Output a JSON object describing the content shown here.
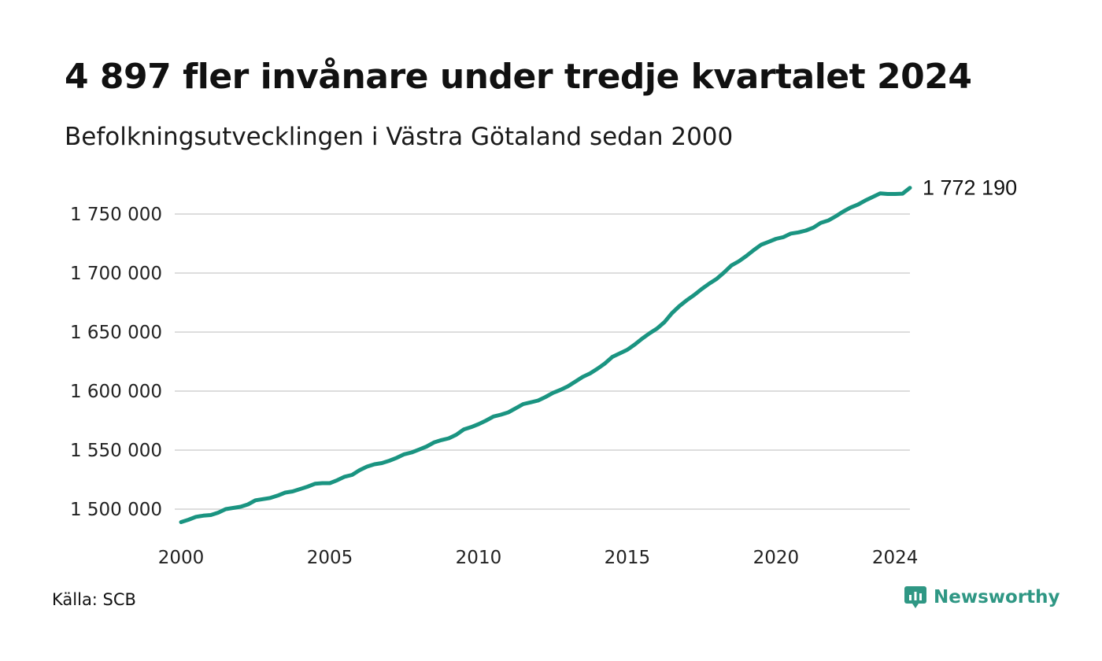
{
  "header": {
    "title": "4 897 fler invånare under tredje kvartalet 2024",
    "subtitle": "Befolkningsutvecklingen i Västra Götaland sedan 2000"
  },
  "footer": {
    "source": "Källa: SCB",
    "brand": "Newsworthy"
  },
  "colors": {
    "line": "#1a9481",
    "grid": "#dddddd",
    "brand": "#2f9784"
  },
  "chart_data": {
    "type": "line",
    "title": "4 897 fler invånare under tredje kvartalet 2024",
    "subtitle": "Befolkningsutvecklingen i Västra Götaland sedan 2000",
    "xlabel": "",
    "ylabel": "",
    "x_ticks": [
      2000,
      2005,
      2010,
      2015,
      2020,
      2024
    ],
    "y_ticks": [
      "1 500 000",
      "1 550 000",
      "1 600 000",
      "1 650 000",
      "1 700 000",
      "1 750 000"
    ],
    "y_tick_values": [
      1500000,
      1550000,
      1600000,
      1650000,
      1700000,
      1750000
    ],
    "xlim": [
      2000,
      2025
    ],
    "ylim": [
      1487000,
      1777000
    ],
    "grid": true,
    "end_label": "1 772 190",
    "series": [
      {
        "x": [
          2000.0,
          2000.25,
          2000.5,
          2000.75,
          2001.0,
          2001.25,
          2001.5,
          2001.75,
          2002.0,
          2002.25,
          2002.5,
          2002.75,
          2003.0,
          2003.25,
          2003.5,
          2003.75,
          2004.0,
          2004.25,
          2004.5,
          2004.75,
          2005.0,
          2005.25,
          2005.5,
          2005.75,
          2006.0,
          2006.25,
          2006.5,
          2006.75,
          2007.0,
          2007.25,
          2007.5,
          2007.75,
          2008.0,
          2008.25,
          2008.5,
          2008.75,
          2009.0,
          2009.25,
          2009.5,
          2009.75,
          2010.0,
          2010.25,
          2010.5,
          2010.75,
          2011.0,
          2011.25,
          2011.5,
          2011.75,
          2012.0,
          2012.25,
          2012.5,
          2012.75,
          2013.0,
          2013.25,
          2013.5,
          2013.75,
          2014.0,
          2014.25,
          2014.5,
          2014.75,
          2015.0,
          2015.25,
          2015.5,
          2015.75,
          2016.0,
          2016.25,
          2016.5,
          2016.75,
          2017.0,
          2017.25,
          2017.5,
          2017.75,
          2018.0,
          2018.25,
          2018.5,
          2018.75,
          2019.0,
          2019.25,
          2019.5,
          2019.75,
          2020.0,
          2020.25,
          2020.5,
          2020.75,
          2021.0,
          2021.25,
          2021.5,
          2021.75,
          2022.0,
          2022.25,
          2022.5,
          2022.75,
          2023.0,
          2023.25,
          2023.5,
          2023.75,
          2024.0,
          2024.25,
          2024.5
        ],
        "values": [
          1489000,
          1491000,
          1493500,
          1494500,
          1495000,
          1497000,
          1500000,
          1501000,
          1502000,
          1504000,
          1507500,
          1508500,
          1509500,
          1511500,
          1514000,
          1515000,
          1517000,
          1519000,
          1521500,
          1522000,
          1522000,
          1524500,
          1527500,
          1529000,
          1533000,
          1536000,
          1538000,
          1539000,
          1541000,
          1543500,
          1546500,
          1548000,
          1550500,
          1553000,
          1556500,
          1558500,
          1560000,
          1563000,
          1567500,
          1569500,
          1572000,
          1575000,
          1578500,
          1580000,
          1582000,
          1585500,
          1589000,
          1590500,
          1592000,
          1595000,
          1598500,
          1601000,
          1604000,
          1608000,
          1612000,
          1615000,
          1619000,
          1623500,
          1629000,
          1632000,
          1635000,
          1639500,
          1644500,
          1649000,
          1653000,
          1658500,
          1666000,
          1672000,
          1677000,
          1681500,
          1686500,
          1691000,
          1695000,
          1700500,
          1706500,
          1710000,
          1714500,
          1719500,
          1724000,
          1726500,
          1729000,
          1730500,
          1733500,
          1734500,
          1736000,
          1738500,
          1742500,
          1744500,
          1748000,
          1752000,
          1755500,
          1758000,
          1761500,
          1764500,
          1767500,
          1767000,
          1767000,
          1767293,
          1772190
        ]
      }
    ]
  }
}
